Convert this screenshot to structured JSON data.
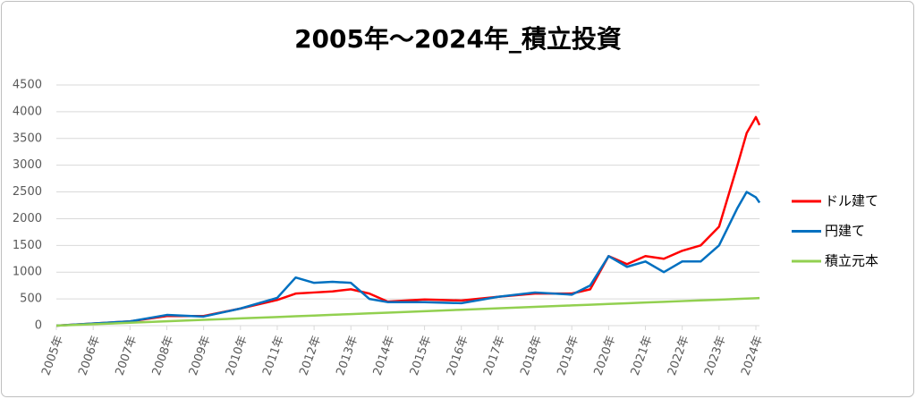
{
  "chart_data": {
    "type": "line",
    "title": "2005年～2024年_積立投資",
    "x": [
      2005,
      2006,
      2007,
      2008,
      2009,
      2010,
      2011,
      2011.5,
      2012,
      2012.5,
      2013,
      2013.5,
      2014,
      2015,
      2016,
      2017,
      2018,
      2019,
      2019.5,
      2020,
      2020.5,
      2021,
      2021.5,
      2022,
      2022.5,
      2023,
      2023.5,
      2023.75,
      2024,
      2024.1
    ],
    "series": [
      {
        "name": "ドル建て",
        "color": "#ff0000",
        "values": [
          0,
          40,
          80,
          180,
          180,
          320,
          480,
          600,
          620,
          640,
          680,
          600,
          450,
          490,
          470,
          540,
          600,
          600,
          680,
          1300,
          1150,
          1300,
          1250,
          1400,
          1500,
          1850,
          3000,
          3600,
          3900,
          3750
        ]
      },
      {
        "name": "円建て",
        "color": "#0070c0",
        "values": [
          0,
          40,
          80,
          200,
          170,
          320,
          520,
          900,
          800,
          820,
          800,
          500,
          440,
          440,
          420,
          540,
          620,
          580,
          750,
          1300,
          1100,
          1200,
          1000,
          1200,
          1200,
          1500,
          2200,
          2500,
          2400,
          2300
        ]
      },
      {
        "name": "積立元本",
        "color": "#92d050",
        "values": [
          0,
          27,
          54,
          81,
          108,
          135,
          162,
          176,
          189,
          203,
          216,
          230,
          243,
          270,
          297,
          324,
          351,
          378,
          392,
          405,
          419,
          432,
          446,
          459,
          473,
          486,
          500,
          506,
          513,
          516
        ]
      }
    ],
    "xlim": [
      2005,
      2024.1
    ],
    "xticks": [
      {
        "value": 2005,
        "label": "2005年"
      },
      {
        "value": 2006,
        "label": "2006年"
      },
      {
        "value": 2007,
        "label": "2007年"
      },
      {
        "value": 2008,
        "label": "2008年"
      },
      {
        "value": 2009,
        "label": "2009年"
      },
      {
        "value": 2010,
        "label": "2010年"
      },
      {
        "value": 2011,
        "label": "2011年"
      },
      {
        "value": 2012,
        "label": "2012年"
      },
      {
        "value": 2013,
        "label": "2013年"
      },
      {
        "value": 2014,
        "label": "2014年"
      },
      {
        "value": 2015,
        "label": "2015年"
      },
      {
        "value": 2016,
        "label": "2016年"
      },
      {
        "value": 2017,
        "label": "2017年"
      },
      {
        "value": 2018,
        "label": "2018年"
      },
      {
        "value": 2019,
        "label": "2019年"
      },
      {
        "value": 2020,
        "label": "2020年"
      },
      {
        "value": 2021,
        "label": "2021年"
      },
      {
        "value": 2022,
        "label": "2022年"
      },
      {
        "value": 2023,
        "label": "2023年"
      },
      {
        "value": 2024,
        "label": "2024年"
      }
    ],
    "ylim": [
      0,
      4500
    ],
    "yticks": [
      0,
      500,
      1000,
      1500,
      2000,
      2500,
      3000,
      3500,
      4000,
      4500
    ],
    "grid": true,
    "legend": "right"
  }
}
